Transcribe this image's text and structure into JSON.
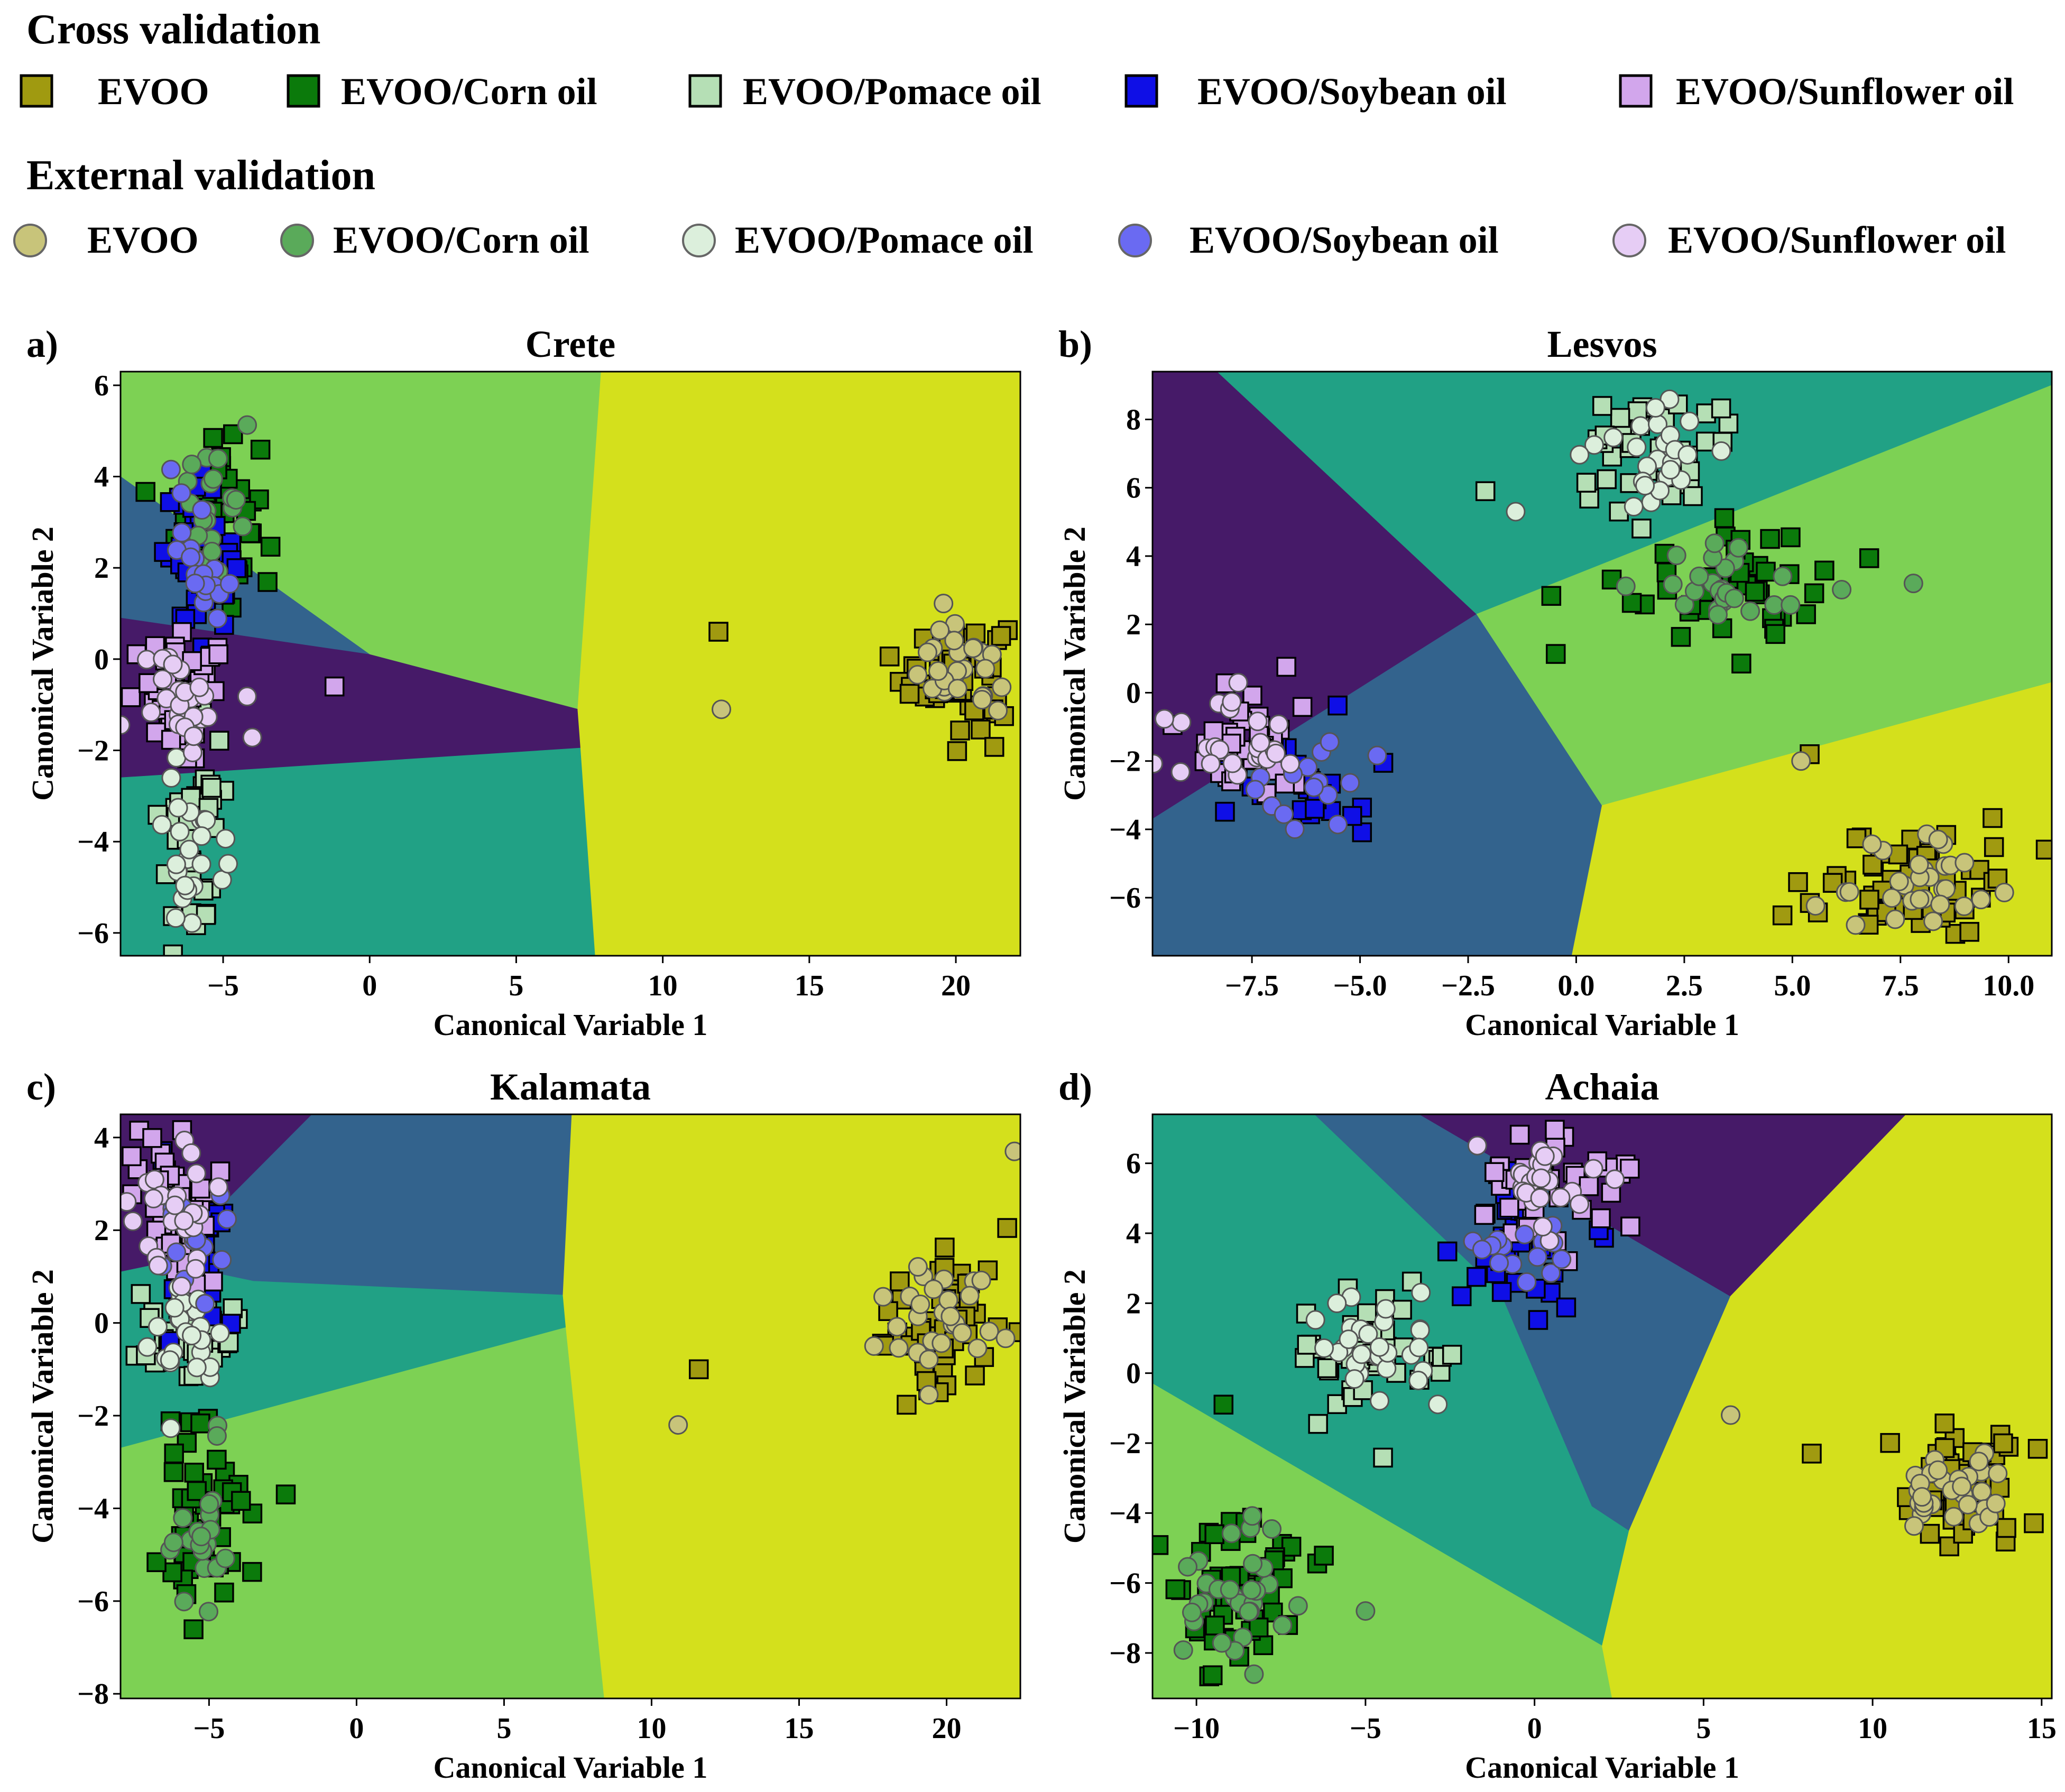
{
  "legend": {
    "cv_title": "Cross validation",
    "ev_title": "External validation",
    "entries": [
      {
        "label": "EVOO",
        "cv_color": "#a09a10",
        "ev_color": "#c8c47a"
      },
      {
        "label": "EVOO/Corn oil",
        "cv_color": "#0b7a0b",
        "ev_color": "#5aaa5a"
      },
      {
        "label": "EVOO/Pomace oil",
        "cv_color": "#b5dfb5",
        "ev_color": "#dcefdc"
      },
      {
        "label": "EVOO/Soybean oil",
        "cv_color": "#0f0fe6",
        "ev_color": "#6a6af2"
      },
      {
        "label": "EVOO/Sunflower oil",
        "cv_color": "#d2a6ec",
        "ev_color": "#e6cdf5"
      }
    ]
  },
  "region_colors": [
    "#d4e01c",
    "#7dd154",
    "#21a185",
    "#33638d",
    "#461a68"
  ],
  "chart_data": [
    {
      "type": "scatter",
      "panel": "a)",
      "title": "Crete",
      "xlabel": "Canonical Variable 1",
      "ylabel": "Canonical Variable 2",
      "xlim": [
        -8.5,
        22.2
      ],
      "ylim": [
        -6.5,
        6.3
      ],
      "xticks": [
        -5,
        0,
        5,
        10,
        15,
        20
      ],
      "xtick_labels": [
        "−5",
        "0",
        "5",
        "10",
        "15",
        "20"
      ],
      "yticks": [
        -6,
        -4,
        -2,
        0,
        2,
        4,
        6
      ],
      "ytick_labels": [
        "−6",
        "−4",
        "−2",
        "0",
        "2",
        "4",
        "6"
      ],
      "regions": [
        {
          "color_index": 1,
          "points": [
            [
              -8.5,
              6.3
            ],
            [
              7.9,
              6.3
            ],
            [
              7.1,
              -1.1
            ],
            [
              0,
              0.1
            ],
            [
              -8.5,
              4.0
            ]
          ]
        },
        {
          "color_index": 3,
          "points": [
            [
              -8.5,
              4.0
            ],
            [
              0,
              0.1
            ],
            [
              -8.5,
              0.9
            ]
          ]
        },
        {
          "color_index": 4,
          "points": [
            [
              -8.5,
              0.9
            ],
            [
              0,
              0.1
            ],
            [
              7.1,
              -1.1
            ],
            [
              7.2,
              -1.95
            ],
            [
              -8.5,
              -2.6
            ]
          ]
        },
        {
          "color_index": 2,
          "points": [
            [
              -8.5,
              -2.6
            ],
            [
              7.2,
              -1.95
            ],
            [
              7.7,
              -6.5
            ],
            [
              -8.5,
              -6.5
            ]
          ]
        },
        {
          "color_index": 0,
          "points": [
            [
              7.9,
              6.3
            ],
            [
              22.2,
              6.3
            ],
            [
              22.2,
              -6.5
            ],
            [
              7.7,
              -6.5
            ],
            [
              7.2,
              -1.95
            ],
            [
              7.1,
              -1.1
            ]
          ]
        }
      ],
      "clusters": [
        {
          "class": 0,
          "n_cv": 60,
          "n_ev": 28,
          "cx": 20.0,
          "cy": -0.3,
          "sx": 0.9,
          "sy": 0.6
        },
        {
          "class": 1,
          "n_cv": 45,
          "n_ev": 20,
          "cx": -5.2,
          "cy": 3.3,
          "sx": 0.7,
          "sy": 1.0
        },
        {
          "class": 2,
          "n_cv": 35,
          "n_ev": 25,
          "cx": -6.0,
          "cy": -4.0,
          "sx": 0.6,
          "sy": 1.3
        },
        {
          "class": 3,
          "n_cv": 40,
          "n_ev": 20,
          "cx": -5.8,
          "cy": 2.3,
          "sx": 0.6,
          "sy": 0.8
        },
        {
          "class": 4,
          "n_cv": 45,
          "n_ev": 25,
          "cx": -6.3,
          "cy": -0.8,
          "sx": 0.9,
          "sy": 0.6
        }
      ],
      "extra_points": [
        {
          "class": 0,
          "kind": "cv",
          "x": 11.9,
          "y": 0.6
        },
        {
          "class": 0,
          "kind": "ev",
          "x": 12.0,
          "y": -1.1
        },
        {
          "class": 4,
          "kind": "cv",
          "x": -1.2,
          "y": -0.6
        }
      ]
    },
    {
      "type": "scatter",
      "panel": "b)",
      "title": "Lesvos",
      "xlabel": "Canonical Variable 1",
      "ylabel": "Canonical Variable 2",
      "xlim": [
        -9.8,
        11.0
      ],
      "ylim": [
        -7.7,
        9.4
      ],
      "xticks": [
        -7.5,
        -5.0,
        -2.5,
        0.0,
        2.5,
        5.0,
        7.5,
        10.0
      ],
      "xtick_labels": [
        "−7.5",
        "−5.0",
        "−2.5",
        "0.0",
        "2.5",
        "5.0",
        "7.5",
        "10.0"
      ],
      "yticks": [
        -6,
        -4,
        -2,
        0,
        2,
        4,
        6,
        8
      ],
      "ytick_labels": [
        "−6",
        "−4",
        "−2",
        "0",
        "2",
        "4",
        "6",
        "8"
      ],
      "regions": [
        {
          "color_index": 4,
          "points": [
            [
              -9.8,
              9.4
            ],
            [
              -8.3,
              9.4
            ],
            [
              -2.3,
              2.3
            ],
            [
              -9.8,
              -3.7
            ]
          ]
        },
        {
          "color_index": 2,
          "points": [
            [
              -8.3,
              9.4
            ],
            [
              11.0,
              9.4
            ],
            [
              11.0,
              9.0
            ],
            [
              -2.3,
              2.3
            ]
          ]
        },
        {
          "color_index": 3,
          "points": [
            [
              -9.8,
              -3.7
            ],
            [
              -2.3,
              2.3
            ],
            [
              0.6,
              -3.3
            ],
            [
              -0.1,
              -7.7
            ],
            [
              -9.8,
              -7.7
            ]
          ]
        },
        {
          "color_index": 1,
          "points": [
            [
              -2.3,
              2.3
            ],
            [
              11.0,
              9.0
            ],
            [
              11.0,
              0.3
            ],
            [
              0.6,
              -3.3
            ]
          ]
        },
        {
          "color_index": 0,
          "points": [
            [
              0.6,
              -3.3
            ],
            [
              11.0,
              0.3
            ],
            [
              11.0,
              -7.7
            ],
            [
              -0.1,
              -7.7
            ]
          ]
        }
      ],
      "clusters": [
        {
          "class": 0,
          "n_cv": 55,
          "n_ev": 30,
          "cx": 7.8,
          "cy": -5.6,
          "sx": 1.2,
          "sy": 0.9
        },
        {
          "class": 1,
          "n_cv": 50,
          "n_ev": 25,
          "cx": 3.4,
          "cy": 3.2,
          "sx": 1.2,
          "sy": 0.9
        },
        {
          "class": 2,
          "n_cv": 40,
          "n_ev": 25,
          "cx": 1.8,
          "cy": 6.9,
          "sx": 1.0,
          "sy": 1.0
        },
        {
          "class": 3,
          "n_cv": 30,
          "n_ev": 15,
          "cx": -6.5,
          "cy": -2.6,
          "sx": 0.9,
          "sy": 0.9
        },
        {
          "class": 4,
          "n_cv": 40,
          "n_ev": 25,
          "cx": -7.7,
          "cy": -1.4,
          "sx": 0.8,
          "sy": 0.8
        }
      ],
      "extra_points": [
        {
          "class": 2,
          "kind": "cv",
          "x": -2.1,
          "y": 5.9
        },
        {
          "class": 2,
          "kind": "ev",
          "x": -1.4,
          "y": 5.3
        },
        {
          "class": 1,
          "kind": "ev",
          "x": 7.8,
          "y": 3.2
        },
        {
          "class": 0,
          "kind": "cv",
          "x": 5.4,
          "y": -1.8
        },
        {
          "class": 0,
          "kind": "ev",
          "x": 5.2,
          "y": -2.0
        }
      ]
    },
    {
      "type": "scatter",
      "panel": "c)",
      "title": "Kalamata",
      "xlabel": "Canonical Variable 1",
      "ylabel": "Canonical Variable 2",
      "xlim": [
        -8.0,
        22.5
      ],
      "ylim": [
        -8.1,
        4.5
      ],
      "xticks": [
        -5,
        0,
        5,
        10,
        15,
        20
      ],
      "xtick_labels": [
        "−5",
        "0",
        "5",
        "10",
        "15",
        "20"
      ],
      "yticks": [
        -8,
        -6,
        -4,
        -2,
        0,
        2,
        4
      ],
      "ytick_labels": [
        "−8",
        "−6",
        "−4",
        "−2",
        "0",
        "2",
        "4"
      ],
      "regions": [
        {
          "color_index": 4,
          "points": [
            [
              -8.0,
              4.5
            ],
            [
              -1.5,
              4.5
            ],
            [
              -6.5,
              1.3
            ],
            [
              -8.0,
              1.1
            ]
          ]
        },
        {
          "color_index": 3,
          "points": [
            [
              -1.5,
              4.5
            ],
            [
              7.3,
              4.5
            ],
            [
              7.0,
              0.6
            ],
            [
              -3.5,
              0.9
            ],
            [
              -6.5,
              1.3
            ]
          ]
        },
        {
          "color_index": 2,
          "points": [
            [
              -8.0,
              1.1
            ],
            [
              -6.5,
              1.3
            ],
            [
              -3.5,
              0.9
            ],
            [
              7.0,
              0.6
            ],
            [
              7.1,
              -0.1
            ],
            [
              -8.0,
              -2.7
            ]
          ]
        },
        {
          "color_index": 1,
          "points": [
            [
              -8.0,
              -2.7
            ],
            [
              7.1,
              -0.1
            ],
            [
              8.4,
              -8.1
            ],
            [
              -8.0,
              -8.1
            ]
          ]
        },
        {
          "color_index": 0,
          "points": [
            [
              7.3,
              4.5
            ],
            [
              22.5,
              4.5
            ],
            [
              22.5,
              -8.1
            ],
            [
              8.4,
              -8.1
            ],
            [
              7.1,
              -0.1
            ],
            [
              7.0,
              0.6
            ]
          ]
        }
      ],
      "clusters": [
        {
          "class": 0,
          "n_cv": 60,
          "n_ev": 28,
          "cx": 20.0,
          "cy": 0.0,
          "sx": 1.1,
          "sy": 0.8
        },
        {
          "class": 1,
          "n_cv": 50,
          "n_ev": 20,
          "cx": -5.3,
          "cy": -4.4,
          "sx": 0.8,
          "sy": 1.3
        },
        {
          "class": 2,
          "n_cv": 35,
          "n_ev": 25,
          "cx": -5.6,
          "cy": -0.3,
          "sx": 0.8,
          "sy": 0.7
        },
        {
          "class": 3,
          "n_cv": 35,
          "n_ev": 15,
          "cx": -5.6,
          "cy": 1.8,
          "sx": 0.7,
          "sy": 1.0
        },
        {
          "class": 4,
          "n_cv": 45,
          "n_ev": 25,
          "cx": -6.2,
          "cy": 2.4,
          "sx": 0.8,
          "sy": 0.9
        }
      ],
      "extra_points": [
        {
          "class": 0,
          "kind": "cv",
          "x": 11.6,
          "y": -1.0
        },
        {
          "class": 0,
          "kind": "ev",
          "x": 10.9,
          "y": -2.2
        },
        {
          "class": 0,
          "kind": "ev",
          "x": 22.3,
          "y": 3.7
        },
        {
          "class": 1,
          "kind": "cv",
          "x": -2.4,
          "y": -3.7
        }
      ]
    },
    {
      "type": "scatter",
      "panel": "d)",
      "title": "Achaia",
      "xlabel": "Canonical Variable 1",
      "ylabel": "Canonical Variable 2",
      "xlim": [
        -11.3,
        15.3
      ],
      "ylim": [
        -9.3,
        7.4
      ],
      "xticks": [
        -10,
        -5,
        0,
        5,
        10,
        15
      ],
      "xtick_labels": [
        "−10",
        "−5",
        "0",
        "5",
        "10",
        "15"
      ],
      "yticks": [
        -8,
        -6,
        -4,
        -2,
        0,
        2,
        4,
        6
      ],
      "ytick_labels": [
        "−8",
        "−6",
        "−4",
        "−2",
        "0",
        "2",
        "4",
        "6"
      ],
      "regions": [
        {
          "color_index": 2,
          "points": [
            [
              -11.3,
              7.4
            ],
            [
              -6.5,
              7.4
            ],
            [
              -1.0,
              2.3
            ],
            [
              1.7,
              -3.8
            ],
            [
              2.8,
              -4.5
            ],
            [
              2.0,
              -7.8
            ],
            [
              -11.3,
              -0.3
            ]
          ]
        },
        {
          "color_index": 3,
          "points": [
            [
              -6.5,
              7.4
            ],
            [
              -3.4,
              7.4
            ],
            [
              5.8,
              2.2
            ],
            [
              2.8,
              -4.5
            ],
            [
              1.7,
              -3.8
            ],
            [
              -1.0,
              2.3
            ]
          ]
        },
        {
          "color_index": 4,
          "points": [
            [
              -3.4,
              7.4
            ],
            [
              11.0,
              7.4
            ],
            [
              5.8,
              2.2
            ]
          ]
        },
        {
          "color_index": 1,
          "points": [
            [
              -11.3,
              -0.3
            ],
            [
              2.0,
              -7.8
            ],
            [
              2.3,
              -9.3
            ],
            [
              -11.3,
              -9.3
            ]
          ]
        },
        {
          "color_index": 0,
          "points": [
            [
              11.0,
              7.4
            ],
            [
              15.3,
              7.4
            ],
            [
              15.3,
              -9.3
            ],
            [
              2.3,
              -9.3
            ],
            [
              2.0,
              -7.8
            ],
            [
              2.8,
              -4.5
            ],
            [
              5.8,
              2.2
            ]
          ]
        }
      ],
      "clusters": [
        {
          "class": 0,
          "n_cv": 55,
          "n_ev": 30,
          "cx": 12.5,
          "cy": -3.3,
          "sx": 1.2,
          "sy": 0.9
        },
        {
          "class": 1,
          "n_cv": 50,
          "n_ev": 30,
          "cx": -8.8,
          "cy": -6.2,
          "sx": 1.0,
          "sy": 1.3
        },
        {
          "class": 2,
          "n_cv": 45,
          "n_ev": 30,
          "cx": -4.6,
          "cy": 0.6,
          "sx": 1.1,
          "sy": 0.9
        },
        {
          "class": 3,
          "n_cv": 35,
          "n_ev": 15,
          "cx": -0.6,
          "cy": 3.5,
          "sx": 1.0,
          "sy": 0.9
        },
        {
          "class": 4,
          "n_cv": 40,
          "n_ev": 25,
          "cx": 0.4,
          "cy": 5.3,
          "sx": 1.0,
          "sy": 0.9
        }
      ],
      "extra_points": [
        {
          "class": 0,
          "kind": "ev",
          "x": 5.8,
          "y": -1.2
        },
        {
          "class": 0,
          "kind": "cv",
          "x": 8.2,
          "y": -2.3
        },
        {
          "class": 1,
          "kind": "cv",
          "x": -9.2,
          "y": -0.9
        },
        {
          "class": 1,
          "kind": "ev",
          "x": -5.0,
          "y": -6.8
        }
      ]
    }
  ]
}
